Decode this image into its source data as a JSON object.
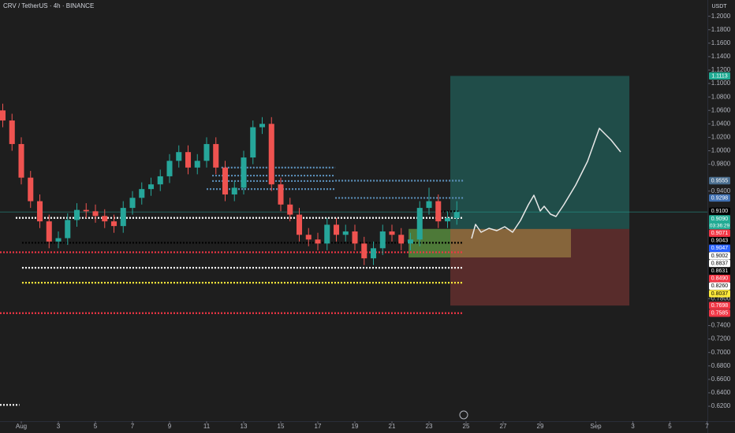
{
  "chart_data": {
    "type": "candlestick",
    "title": "CRV / TetherUS · 4h · BINANCE",
    "currency": "USDT",
    "x": [
      -1.0,
      -0.5,
      0,
      0.5,
      1,
      1.5,
      2,
      2.5,
      3,
      3.5,
      4,
      4.5,
      5,
      5.5,
      6,
      6.5,
      7,
      7.5,
      8,
      8.5,
      9,
      9.5,
      10,
      10.5,
      11,
      11.5,
      12,
      12.5,
      13,
      13.5,
      14,
      14.5,
      15,
      15.5,
      16,
      16.5,
      17,
      17.5,
      18,
      18.5,
      19,
      19.5,
      20,
      20.5,
      21,
      21.5,
      22,
      22.5,
      23,
      23.5
    ],
    "open": [
      1.06,
      1.045,
      1.01,
      0.96,
      0.925,
      0.895,
      0.865,
      0.87,
      0.897,
      0.912,
      0.91,
      0.903,
      0.895,
      0.888,
      0.915,
      0.93,
      0.943,
      0.95,
      0.962,
      0.985,
      0.998,
      0.975,
      0.985,
      1.01,
      0.975,
      0.935,
      0.945,
      0.99,
      1.035,
      1.04,
      0.95,
      0.92,
      0.905,
      0.875,
      0.868,
      0.862,
      0.89,
      0.875,
      0.88,
      0.862,
      0.84,
      0.855,
      0.88,
      0.875,
      0.862,
      0.868,
      0.915,
      0.925,
      0.895,
      0.9
    ],
    "high": [
      1.07,
      1.055,
      1.02,
      0.97,
      0.935,
      0.905,
      0.88,
      0.907,
      0.922,
      0.922,
      0.92,
      0.913,
      0.905,
      0.925,
      0.94,
      0.953,
      0.96,
      0.972,
      0.995,
      1.008,
      1.008,
      0.995,
      1.02,
      1.02,
      0.985,
      0.955,
      1.0,
      1.045,
      1.05,
      1.05,
      0.96,
      0.93,
      0.915,
      0.885,
      0.878,
      0.9,
      0.9,
      0.89,
      0.89,
      0.872,
      0.865,
      0.89,
      0.89,
      0.885,
      0.878,
      0.925,
      0.945,
      0.935,
      0.91,
      0.925
    ],
    "low": [
      1.035,
      1.0,
      0.95,
      0.915,
      0.885,
      0.855,
      0.855,
      0.86,
      0.887,
      0.9,
      0.893,
      0.885,
      0.878,
      0.878,
      0.905,
      0.92,
      0.933,
      0.94,
      0.952,
      0.975,
      0.965,
      0.965,
      0.975,
      0.965,
      0.925,
      0.925,
      0.935,
      0.98,
      1.025,
      0.94,
      0.91,
      0.895,
      0.865,
      0.858,
      0.852,
      0.852,
      0.865,
      0.865,
      0.852,
      0.83,
      0.83,
      0.845,
      0.865,
      0.852,
      0.852,
      0.858,
      0.905,
      0.885,
      0.885,
      0.89
    ],
    "close": [
      1.045,
      1.01,
      0.96,
      0.925,
      0.895,
      0.865,
      0.87,
      0.897,
      0.912,
      0.91,
      0.903,
      0.895,
      0.888,
      0.915,
      0.93,
      0.943,
      0.95,
      0.962,
      0.985,
      0.998,
      0.975,
      0.985,
      1.01,
      0.975,
      0.935,
      0.945,
      0.99,
      1.035,
      1.04,
      0.95,
      0.92,
      0.905,
      0.875,
      0.868,
      0.862,
      0.89,
      0.875,
      0.88,
      0.862,
      0.84,
      0.855,
      0.88,
      0.875,
      0.862,
      0.868,
      0.915,
      0.925,
      0.895,
      0.9,
      0.909
    ],
    "up_color": "#26a69a",
    "down_color": "#ef5350",
    "xlim": [
      -1.149,
      37.021
    ],
    "xticks": [
      {
        "value": 0,
        "label": "Aug"
      },
      {
        "value": 2,
        "label": "3"
      },
      {
        "value": 4,
        "label": "5"
      },
      {
        "value": 6,
        "label": "7"
      },
      {
        "value": 8,
        "label": "9"
      },
      {
        "value": 10,
        "label": "11"
      },
      {
        "value": 12,
        "label": "13"
      },
      {
        "value": 14,
        "label": "15"
      },
      {
        "value": 16,
        "label": "17"
      },
      {
        "value": 18,
        "label": "19"
      },
      {
        "value": 20,
        "label": "21"
      },
      {
        "value": 22,
        "label": "23"
      },
      {
        "value": 24,
        "label": "25"
      },
      {
        "value": 26,
        "label": "27"
      },
      {
        "value": 28,
        "label": "29"
      },
      {
        "value": 31,
        "label": "Sep"
      },
      {
        "value": 33,
        "label": "3"
      },
      {
        "value": 35,
        "label": "5"
      },
      {
        "value": 37,
        "label": "7"
      }
    ],
    "ylim": [
      0.5978,
      1.2242
    ],
    "yticks": [
      {
        "value": 1.2,
        "label": "1.2000"
      },
      {
        "value": 1.18,
        "label": "1.1800"
      },
      {
        "value": 1.16,
        "label": "1.1600"
      },
      {
        "value": 1.14,
        "label": "1.1400"
      },
      {
        "value": 1.12,
        "label": "1.1200"
      },
      {
        "value": 1.1,
        "label": "1.1000"
      },
      {
        "value": 1.08,
        "label": "1.0800"
      },
      {
        "value": 1.06,
        "label": "1.0600"
      },
      {
        "value": 1.04,
        "label": "1.0400"
      },
      {
        "value": 1.02,
        "label": "1.0200"
      },
      {
        "value": 1.0,
        "label": "1.0000"
      },
      {
        "value": 0.98,
        "label": "0.9800"
      },
      {
        "value": 0.94,
        "label": "0.9400"
      },
      {
        "value": 0.78,
        "label": "0.7800"
      },
      {
        "value": 0.74,
        "label": "0.7400"
      },
      {
        "value": 0.72,
        "label": "0.7200"
      },
      {
        "value": 0.7,
        "label": "0.7000"
      },
      {
        "value": 0.68,
        "label": "0.6800"
      },
      {
        "value": 0.66,
        "label": "0.6600"
      },
      {
        "value": 0.64,
        "label": "0.6400"
      },
      {
        "value": 0.62,
        "label": "0.6200"
      }
    ],
    "grid": false,
    "price_labels": [
      {
        "value": 1.1113,
        "label": "1.1113",
        "color": "#22ab94",
        "text_color": "#ffffff"
      },
      {
        "value": 0.9555,
        "label": "0.9555",
        "color": "#4a6e8f",
        "text_color": "#ffffff"
      },
      {
        "value": 0.9298,
        "label": "0.9298",
        "color": "#3f6fb0",
        "text_color": "#ffffff"
      },
      {
        "value": 0.91,
        "label": "0.9100",
        "color": "#000000",
        "text_color": "#ffffff"
      },
      {
        "value": 0.909,
        "label": "0.9090",
        "color": "#22ab94",
        "text_color": "#ffffff",
        "countdown": "03:36:29"
      },
      {
        "value": 0.9071,
        "label": "0.9071",
        "color": "#f23645",
        "text_color": "#ffffff"
      },
      {
        "value": 0.9043,
        "label": "0.9043",
        "color": "#000000",
        "text_color": "#ffffff"
      },
      {
        "value": 0.9047,
        "label": "0.9047",
        "color": "#2962ff",
        "text_color": "#ffffff"
      },
      {
        "value": 0.9002,
        "label": "0.9002",
        "color": "#ffffff",
        "text_color": "#000000"
      },
      {
        "value": 0.8837,
        "label": "0.8837",
        "color": "#ffffff",
        "text_color": "#000000"
      },
      {
        "value": 0.8631,
        "label": "0.8631",
        "color": "#000000",
        "text_color": "#ffffff"
      },
      {
        "value": 0.849,
        "label": "0.8490",
        "color": "#f23645",
        "text_color": "#ffffff"
      },
      {
        "value": 0.826,
        "label": "0.8260",
        "color": "#ffffff",
        "text_color": "#000000"
      },
      {
        "value": 0.8037,
        "label": "0.8037",
        "color": "#ffeb3b",
        "text_color": "#000000"
      },
      {
        "value": 0.7698,
        "label": "0.7698",
        "color": "#f23645",
        "text_color": "#ffffff"
      },
      {
        "value": 0.7585,
        "label": "0.7585",
        "color": "#f23645",
        "text_color": "#ffffff"
      }
    ],
    "levels": [
      {
        "value": 0.9002,
        "color": "#ffffff",
        "x": [
          -0.3,
          23.87
        ]
      },
      {
        "value": 0.8631,
        "color": "#000000",
        "x": [
          0.04,
          23.87
        ]
      },
      {
        "value": 0.849,
        "color": "#f23645",
        "x": [
          -1.15,
          23.87
        ]
      },
      {
        "value": 0.826,
        "color": "#ffffff",
        "x": [
          0.04,
          23.87
        ]
      },
      {
        "value": 0.8037,
        "color": "#ffeb3b",
        "x": [
          0.04,
          23.87
        ]
      },
      {
        "value": 0.7585,
        "color": "#f23645",
        "x": [
          -1.15,
          23.87
        ]
      },
      {
        "value": 0.9555,
        "color": "#5b8fb9",
        "x": [
          16.94,
          23.87
        ]
      },
      {
        "value": 0.9298,
        "color": "#5b8fb9",
        "x": [
          16.94,
          23.87
        ]
      },
      {
        "value": 0.975,
        "color": "#5b8fb9",
        "x": [
          10.8,
          16.94
        ]
      },
      {
        "value": 0.963,
        "color": "#5b8fb9",
        "x": [
          10.3,
          16.94
        ]
      },
      {
        "value": 0.955,
        "color": "#5b8fb9",
        "x": [
          10.3,
          16.94
        ]
      },
      {
        "value": 0.943,
        "color": "#5b8fb9",
        "x": [
          10.0,
          16.94
        ]
      },
      {
        "value": 0.91,
        "color": "#000000",
        "x": [
          22.47,
          23.6
        ]
      },
      {
        "value": 0.622,
        "color": "#ffffff",
        "x": [
          -1.15,
          -0.1
        ]
      }
    ],
    "position": {
      "entry": 0.8837,
      "target": 1.1113,
      "stop": 0.7698,
      "x": [
        23.15,
        32.81
      ],
      "zone_low": 0.8413,
      "zone_x": [
        20.9,
        29.66
      ],
      "green_x": [
        20.9,
        23.15
      ]
    }
  }
}
